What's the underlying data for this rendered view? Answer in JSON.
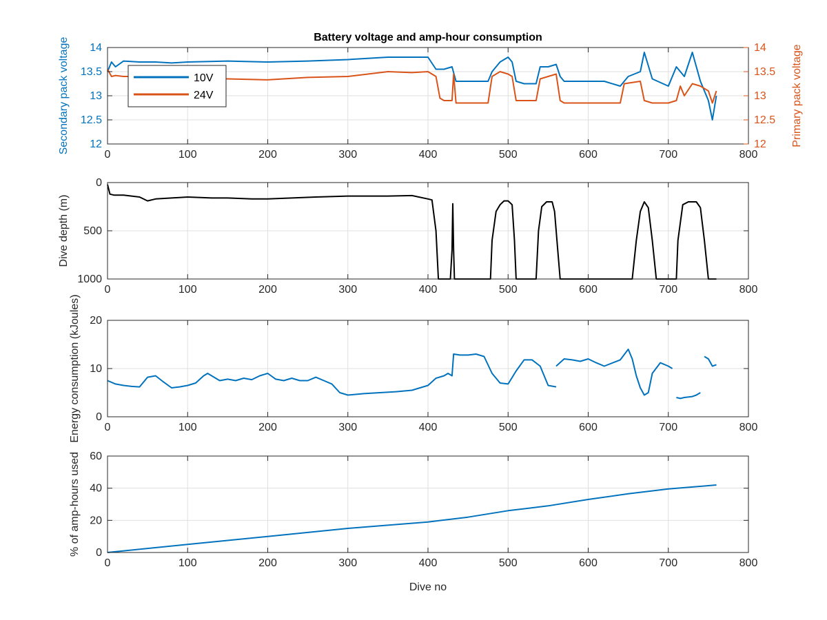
{
  "colors": {
    "series_blue": "#0072bd",
    "series_orange": "#d95319",
    "series_black": "#000000",
    "axis": "#262626",
    "grid": "#dfdfdf"
  },
  "chart_data": [
    {
      "id": "voltage",
      "type": "line",
      "title": "Battery voltage and amp-hour consumption",
      "xlabel": "",
      "ylabel": "Secondary pack voltage",
      "ylabel_right": "Primary pack voltage",
      "xlim": [
        0,
        800
      ],
      "ylim": [
        12,
        14
      ],
      "ylim_right": [
        12,
        14
      ],
      "xticks": [
        0,
        100,
        200,
        300,
        400,
        500,
        600,
        700,
        800
      ],
      "yticks": [
        12,
        12.5,
        13,
        13.5,
        14
      ],
      "yticks_right": [
        12,
        12.5,
        13,
        13.5,
        14
      ],
      "grid": true,
      "legend": "top-left",
      "series": [
        {
          "name": "10V",
          "axis": "left",
          "color": "#0072bd",
          "x": [
            0,
            5,
            10,
            20,
            40,
            60,
            80,
            100,
            150,
            200,
            250,
            300,
            350,
            380,
            400,
            410,
            420,
            430,
            435,
            440,
            460,
            475,
            480,
            490,
            500,
            505,
            510,
            520,
            535,
            540,
            550,
            560,
            565,
            570,
            600,
            620,
            640,
            650,
            665,
            670,
            680,
            700,
            710,
            720,
            730,
            740,
            750,
            755,
            760
          ],
          "y": [
            13.5,
            13.7,
            13.6,
            13.72,
            13.7,
            13.7,
            13.68,
            13.7,
            13.72,
            13.7,
            13.72,
            13.75,
            13.8,
            13.8,
            13.8,
            13.55,
            13.55,
            13.6,
            13.3,
            13.3,
            13.3,
            13.3,
            13.5,
            13.7,
            13.8,
            13.7,
            13.3,
            13.25,
            13.25,
            13.6,
            13.6,
            13.65,
            13.4,
            13.3,
            13.3,
            13.3,
            13.2,
            13.4,
            13.5,
            13.9,
            13.35,
            13.2,
            13.6,
            13.4,
            13.9,
            13.3,
            12.9,
            12.5,
            13.0
          ]
        },
        {
          "name": "24V",
          "axis": "right",
          "color": "#d95319",
          "x": [
            0,
            5,
            10,
            20,
            40,
            60,
            80,
            100,
            150,
            200,
            250,
            300,
            350,
            380,
            400,
            410,
            415,
            420,
            430,
            432,
            435,
            440,
            460,
            475,
            480,
            490,
            500,
            505,
            510,
            520,
            535,
            540,
            550,
            560,
            565,
            570,
            600,
            620,
            640,
            645,
            665,
            670,
            680,
            700,
            710,
            715,
            720,
            730,
            740,
            750,
            755,
            760
          ],
          "y": [
            13.55,
            13.4,
            13.42,
            13.4,
            13.4,
            13.4,
            13.38,
            13.35,
            13.35,
            13.33,
            13.38,
            13.4,
            13.5,
            13.48,
            13.5,
            13.4,
            12.95,
            12.9,
            12.9,
            13.45,
            12.85,
            12.85,
            12.85,
            12.85,
            13.4,
            13.5,
            13.45,
            13.4,
            12.9,
            12.9,
            12.9,
            13.35,
            13.4,
            13.45,
            12.9,
            12.85,
            12.85,
            12.85,
            12.85,
            13.25,
            13.3,
            12.9,
            12.85,
            12.85,
            12.9,
            13.2,
            13.0,
            13.25,
            13.2,
            13.1,
            12.85,
            13.1
          ]
        }
      ]
    },
    {
      "id": "depth",
      "type": "line",
      "xlabel": "",
      "ylabel": "Dive depth (m)",
      "xlim": [
        0,
        800
      ],
      "ylim": [
        0,
        1000
      ],
      "y_reversed": true,
      "xticks": [
        0,
        100,
        200,
        300,
        400,
        500,
        600,
        700,
        800
      ],
      "yticks": [
        0,
        500,
        1000
      ],
      "grid": true,
      "series": [
        {
          "color": "#000000",
          "x": [
            0,
            3,
            8,
            20,
            40,
            50,
            60,
            80,
            100,
            130,
            150,
            180,
            200,
            230,
            260,
            300,
            350,
            380,
            400,
            405,
            410,
            413,
            415,
            425,
            428,
            430,
            431,
            432,
            433,
            435,
            460,
            478,
            480,
            485,
            490,
            495,
            500,
            505,
            508,
            510,
            535,
            538,
            542,
            548,
            555,
            558,
            562,
            565,
            600,
            640,
            655,
            660,
            665,
            670,
            675,
            680,
            685,
            700,
            710,
            712,
            718,
            725,
            735,
            740,
            745,
            750,
            760
          ],
          "y": [
            20,
            120,
            130,
            130,
            150,
            190,
            170,
            160,
            150,
            160,
            160,
            170,
            170,
            160,
            150,
            140,
            140,
            135,
            170,
            180,
            500,
            1000,
            1000,
            1000,
            1000,
            700,
            220,
            700,
            1000,
            1000,
            1000,
            1000,
            600,
            300,
            230,
            190,
            190,
            230,
            600,
            1000,
            1000,
            500,
            250,
            200,
            200,
            300,
            700,
            1000,
            1000,
            1000,
            1000,
            600,
            300,
            200,
            260,
            600,
            1000,
            1000,
            1000,
            600,
            230,
            200,
            200,
            260,
            600,
            1000,
            1000
          ]
        }
      ]
    },
    {
      "id": "energy",
      "type": "line",
      "xlabel": "",
      "ylabel": "Energy consumption (kJoules)",
      "xlim": [
        0,
        800
      ],
      "ylim": [
        0,
        20
      ],
      "xticks": [
        0,
        100,
        200,
        300,
        400,
        500,
        600,
        700,
        800
      ],
      "yticks": [
        0,
        10,
        20
      ],
      "grid": true,
      "segments": [
        {
          "x": [
            0,
            10,
            20,
            30,
            40,
            50,
            60,
            70,
            80,
            90,
            100,
            110,
            120,
            125,
            130,
            140,
            150,
            160,
            170,
            180,
            190,
            200,
            210,
            220,
            230,
            240,
            250,
            260,
            270,
            280,
            290,
            300,
            320,
            340,
            360,
            380,
            400,
            410,
            420,
            425,
            430,
            432,
            440,
            450,
            460,
            470,
            480,
            490,
            500,
            510,
            520,
            530,
            540,
            550,
            560
          ],
          "y": [
            7.5,
            6.8,
            6.5,
            6.3,
            6.2,
            8.2,
            8.5,
            7.2,
            6.0,
            6.2,
            6.5,
            7.0,
            8.5,
            9.0,
            8.5,
            7.5,
            7.8,
            7.5,
            8.0,
            7.7,
            8.5,
            9.0,
            7.8,
            7.5,
            8.0,
            7.5,
            7.5,
            8.2,
            7.5,
            6.8,
            5.0,
            4.5,
            4.8,
            5.0,
            5.2,
            5.5,
            6.5,
            8.0,
            8.5,
            9.0,
            8.5,
            13.0,
            12.8,
            12.8,
            13.0,
            12.5,
            9.0,
            7.0,
            6.8,
            9.5,
            11.8,
            11.8,
            10.5,
            6.5,
            6.2
          ]
        },
        {
          "x": [
            560,
            570,
            580,
            590,
            600,
            610,
            620,
            640,
            650,
            655,
            660,
            665,
            670,
            675,
            680,
            690,
            700,
            705
          ],
          "y": [
            10.5,
            12.0,
            11.8,
            11.5,
            12.0,
            11.2,
            10.5,
            11.8,
            14.0,
            12.0,
            8.5,
            6.0,
            4.5,
            5.0,
            9.0,
            11.2,
            10.5,
            10.0
          ]
        },
        {
          "x": [
            710,
            715,
            720,
            730,
            735,
            740
          ],
          "y": [
            4.0,
            3.8,
            4.0,
            4.2,
            4.5,
            5.0
          ]
        },
        {
          "x": [
            745,
            750,
            755,
            760
          ],
          "y": [
            12.5,
            12.0,
            10.5,
            10.8
          ]
        }
      ],
      "series": [
        {
          "color": "#0072bd"
        }
      ]
    },
    {
      "id": "amphours",
      "type": "line",
      "xlabel": "Dive no",
      "ylabel": "% of amp-hours used",
      "xlim": [
        0,
        800
      ],
      "ylim": [
        0,
        60
      ],
      "xticks": [
        0,
        100,
        200,
        300,
        400,
        500,
        600,
        700,
        800
      ],
      "yticks": [
        0,
        20,
        40,
        60
      ],
      "grid": true,
      "series": [
        {
          "color": "#0072bd",
          "x": [
            0,
            100,
            200,
            300,
            400,
            450,
            500,
            550,
            600,
            650,
            700,
            760
          ],
          "y": [
            0,
            5,
            10,
            15,
            19,
            22,
            26,
            29,
            33,
            36.5,
            39.5,
            42
          ]
        }
      ]
    }
  ]
}
